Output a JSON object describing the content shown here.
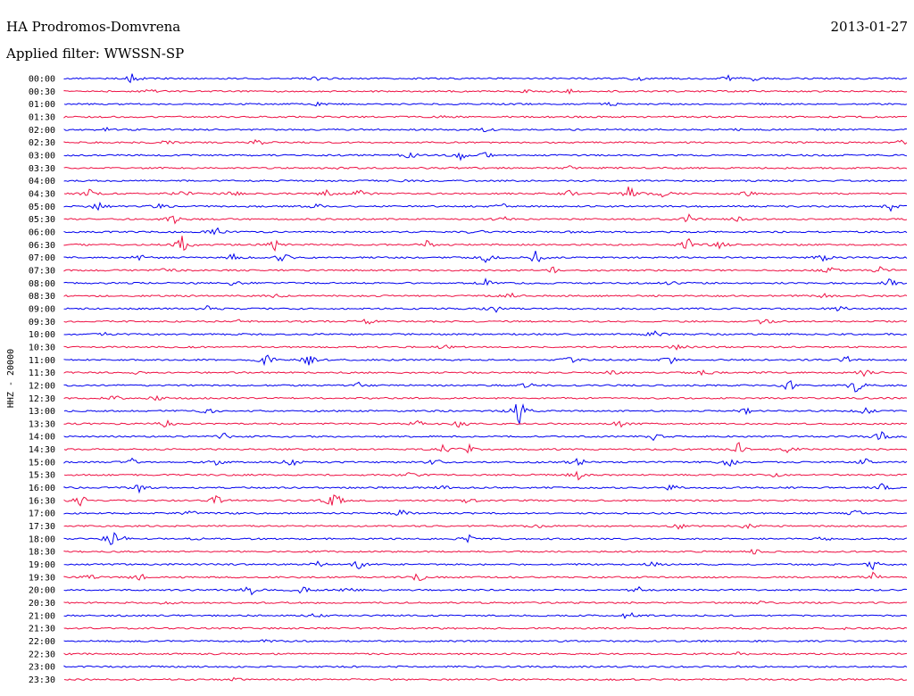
{
  "header": {
    "station": "HA Prodromos-Domvrena",
    "date": "2013-01-27",
    "filter": "Applied filter: WWSSN-SP"
  },
  "chart_data": {
    "type": "line",
    "title": "HA Prodromos-Domvrena",
    "date": "2013-01-27",
    "filter": "Applied filter: WWSSN-SP",
    "ylabel": "HHZ - 20000",
    "colors": [
      "#0000ee",
      "#ee1144"
    ],
    "series": [
      {
        "label": "00:00",
        "events": [
          [
            0.08,
            5
          ],
          [
            0.3,
            3
          ],
          [
            0.68,
            3
          ],
          [
            0.79,
            4
          ],
          [
            0.82,
            4
          ]
        ]
      },
      {
        "label": "00:30",
        "events": [
          [
            0.1,
            3
          ],
          [
            0.55,
            2
          ],
          [
            0.6,
            2
          ]
        ]
      },
      {
        "label": "01:00",
        "events": [
          [
            0.3,
            2
          ],
          [
            0.65,
            2
          ]
        ]
      },
      {
        "label": "01:30",
        "events": [
          [
            0.45,
            1
          ]
        ]
      },
      {
        "label": "02:00",
        "events": [
          [
            0.05,
            2
          ],
          [
            0.5,
            2
          ],
          [
            0.8,
            2
          ]
        ]
      },
      {
        "label": "02:30",
        "events": [
          [
            0.12,
            2
          ],
          [
            0.23,
            4
          ],
          [
            0.99,
            4
          ]
        ]
      },
      {
        "label": "03:00",
        "events": [
          [
            0.41,
            4
          ],
          [
            0.47,
            5
          ],
          [
            0.5,
            3
          ]
        ]
      },
      {
        "label": "03:30",
        "events": [
          [
            0.33,
            2
          ],
          [
            0.6,
            2
          ]
        ]
      },
      {
        "label": "04:00",
        "events": [
          [
            0.4,
            1
          ]
        ]
      },
      {
        "label": "04:30",
        "events": [
          [
            0.03,
            5
          ],
          [
            0.14,
            5
          ],
          [
            0.2,
            4
          ],
          [
            0.31,
            4
          ],
          [
            0.35,
            5
          ],
          [
            0.6,
            4
          ],
          [
            0.67,
            9
          ],
          [
            0.71,
            5
          ],
          [
            0.81,
            3
          ]
        ]
      },
      {
        "label": "05:00",
        "events": [
          [
            0.04,
            5
          ],
          [
            0.11,
            4
          ],
          [
            0.3,
            3
          ],
          [
            0.52,
            3
          ],
          [
            0.98,
            5
          ]
        ]
      },
      {
        "label": "05:30",
        "events": [
          [
            0.13,
            5
          ],
          [
            0.52,
            4
          ],
          [
            0.74,
            6
          ],
          [
            0.8,
            5
          ]
        ]
      },
      {
        "label": "06:00",
        "events": [
          [
            0.18,
            6
          ],
          [
            0.49,
            3
          ],
          [
            0.6,
            3
          ]
        ]
      },
      {
        "label": "06:30",
        "events": [
          [
            0.14,
            10
          ],
          [
            0.25,
            6
          ],
          [
            0.43,
            5
          ],
          [
            0.74,
            8
          ],
          [
            0.78,
            6
          ]
        ]
      },
      {
        "label": "07:00",
        "events": [
          [
            0.09,
            4
          ],
          [
            0.2,
            4
          ],
          [
            0.26,
            8
          ],
          [
            0.5,
            6
          ],
          [
            0.56,
            10
          ],
          [
            0.9,
            5
          ]
        ]
      },
      {
        "label": "07:30",
        "events": [
          [
            0.12,
            3
          ],
          [
            0.58,
            4
          ],
          [
            0.91,
            4
          ],
          [
            0.97,
            5
          ]
        ]
      },
      {
        "label": "08:00",
        "events": [
          [
            0.2,
            3
          ],
          [
            0.5,
            4
          ],
          [
            0.72,
            3
          ],
          [
            0.98,
            5
          ]
        ]
      },
      {
        "label": "08:30",
        "events": [
          [
            0.25,
            3
          ],
          [
            0.53,
            3
          ],
          [
            0.9,
            3
          ]
        ]
      },
      {
        "label": "09:00",
        "events": [
          [
            0.17,
            3
          ],
          [
            0.51,
            5
          ],
          [
            0.92,
            4
          ]
        ]
      },
      {
        "label": "09:30",
        "events": [
          [
            0.21,
            4
          ],
          [
            0.36,
            4
          ],
          [
            0.83,
            4
          ]
        ]
      },
      {
        "label": "10:00",
        "events": [
          [
            0.05,
            2
          ],
          [
            0.7,
            4
          ]
        ]
      },
      {
        "label": "10:30",
        "events": [
          [
            0.45,
            3
          ],
          [
            0.73,
            4
          ]
        ]
      },
      {
        "label": "11:00",
        "events": [
          [
            0.24,
            7
          ],
          [
            0.29,
            6
          ],
          [
            0.6,
            4
          ],
          [
            0.72,
            4
          ],
          [
            0.93,
            5
          ]
        ]
      },
      {
        "label": "11:30",
        "events": [
          [
            0.08,
            3
          ],
          [
            0.65,
            4
          ],
          [
            0.76,
            5
          ],
          [
            0.95,
            4
          ]
        ]
      },
      {
        "label": "12:00",
        "events": [
          [
            0.35,
            3
          ],
          [
            0.55,
            3
          ],
          [
            0.86,
            7
          ],
          [
            0.94,
            9
          ]
        ]
      },
      {
        "label": "12:30",
        "events": [
          [
            0.06,
            3
          ],
          [
            0.11,
            3
          ]
        ]
      },
      {
        "label": "13:00",
        "events": [
          [
            0.17,
            5
          ],
          [
            0.54,
            14
          ],
          [
            0.81,
            4
          ],
          [
            0.95,
            5
          ]
        ]
      },
      {
        "label": "13:30",
        "events": [
          [
            0.12,
            5
          ],
          [
            0.42,
            4
          ],
          [
            0.47,
            5
          ],
          [
            0.66,
            4
          ]
        ]
      },
      {
        "label": "14:00",
        "events": [
          [
            0.19,
            4
          ],
          [
            0.7,
            4
          ],
          [
            0.97,
            6
          ]
        ]
      },
      {
        "label": "14:30",
        "events": [
          [
            0.45,
            5
          ],
          [
            0.48,
            5
          ],
          [
            0.8,
            8
          ],
          [
            0.86,
            4
          ]
        ]
      },
      {
        "label": "15:00",
        "events": [
          [
            0.08,
            6
          ],
          [
            0.18,
            6
          ],
          [
            0.27,
            6
          ],
          [
            0.44,
            4
          ],
          [
            0.61,
            6
          ],
          [
            0.79,
            7
          ],
          [
            0.95,
            4
          ]
        ]
      },
      {
        "label": "15:30",
        "events": [
          [
            0.41,
            5
          ],
          [
            0.61,
            9
          ],
          [
            0.84,
            5
          ]
        ]
      },
      {
        "label": "16:00",
        "events": [
          [
            0.09,
            5
          ],
          [
            0.45,
            4
          ],
          [
            0.72,
            4
          ],
          [
            0.97,
            5
          ]
        ]
      },
      {
        "label": "16:30",
        "events": [
          [
            0.02,
            6
          ],
          [
            0.18,
            6
          ],
          [
            0.32,
            12
          ],
          [
            0.48,
            4
          ]
        ]
      },
      {
        "label": "17:00",
        "events": [
          [
            0.15,
            3
          ],
          [
            0.4,
            4
          ],
          [
            0.94,
            5
          ]
        ]
      },
      {
        "label": "17:30",
        "events": [
          [
            0.56,
            3
          ],
          [
            0.73,
            4
          ],
          [
            0.81,
            4
          ]
        ]
      },
      {
        "label": "18:00",
        "events": [
          [
            0.06,
            18
          ],
          [
            0.16,
            3
          ],
          [
            0.48,
            4
          ],
          [
            0.9,
            3
          ]
        ]
      },
      {
        "label": "18:30",
        "events": [
          [
            0.3,
            2
          ],
          [
            0.82,
            3
          ]
        ]
      },
      {
        "label": "19:00",
        "events": [
          [
            0.3,
            4
          ],
          [
            0.35,
            5
          ],
          [
            0.7,
            3
          ],
          [
            0.96,
            5
          ]
        ]
      },
      {
        "label": "19:30",
        "events": [
          [
            0.03,
            3
          ],
          [
            0.09,
            6
          ],
          [
            0.42,
            5
          ],
          [
            0.96,
            6
          ]
        ]
      },
      {
        "label": "20:00",
        "events": [
          [
            0.22,
            7
          ],
          [
            0.28,
            7
          ],
          [
            0.34,
            4
          ],
          [
            0.68,
            4
          ]
        ]
      },
      {
        "label": "20:30",
        "events": [
          [
            0.12,
            3
          ],
          [
            0.83,
            3
          ]
        ]
      },
      {
        "label": "21:00",
        "events": [
          [
            0.3,
            3
          ],
          [
            0.67,
            6
          ]
        ]
      },
      {
        "label": "21:30",
        "events": [
          [
            0.92,
            2
          ]
        ]
      },
      {
        "label": "22:00",
        "events": [
          [
            0.24,
            2
          ]
        ]
      },
      {
        "label": "22:30",
        "events": [
          [
            0.8,
            3
          ]
        ]
      },
      {
        "label": "23:00",
        "events": []
      },
      {
        "label": "23:30",
        "events": [
          [
            0.2,
            2
          ]
        ]
      }
    ]
  }
}
